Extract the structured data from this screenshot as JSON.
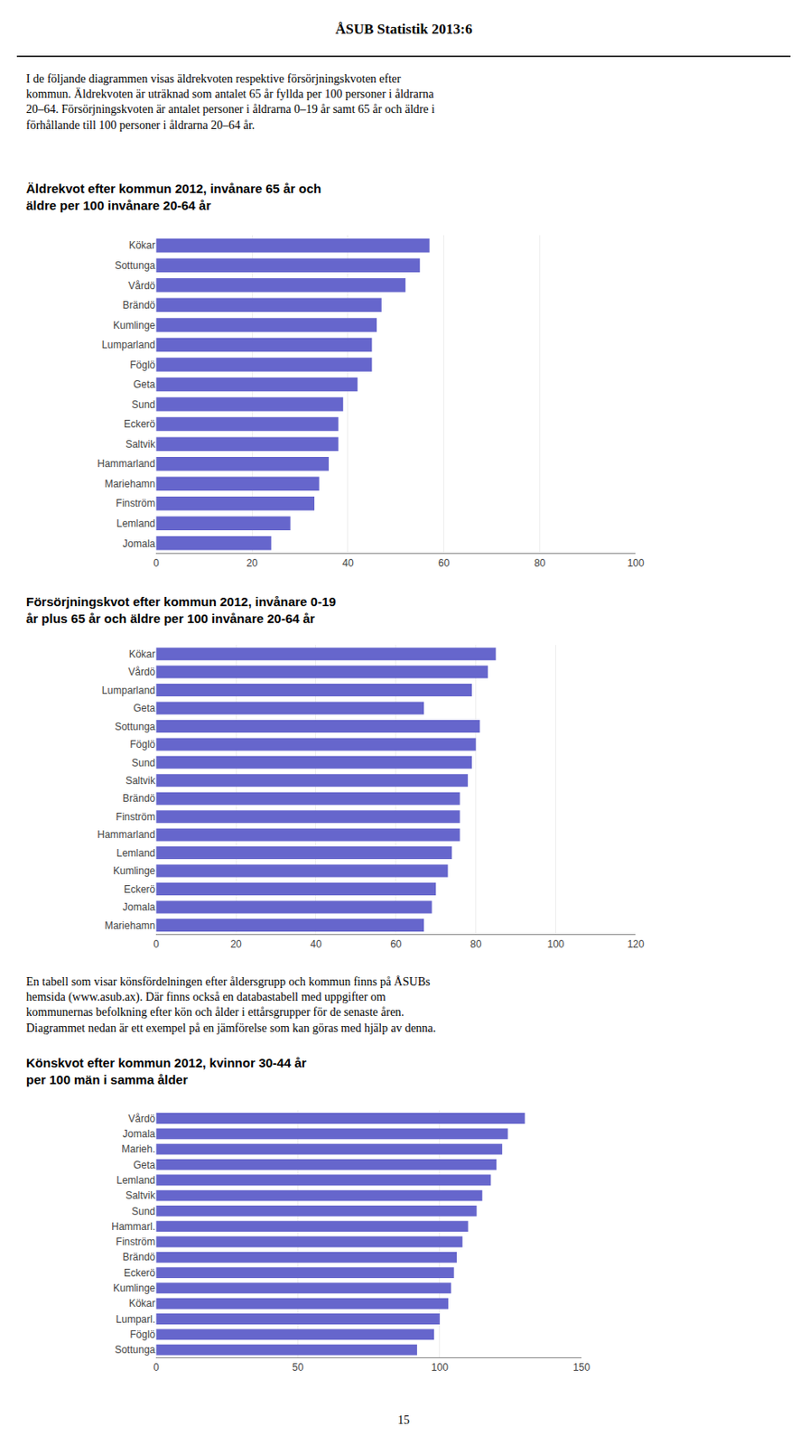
{
  "chart_data": [
    {
      "type": "bar",
      "orientation": "horizontal",
      "title": "Äldrekvot efter kommun 2012, invånare 65 år och\näldre per 100 invånare 20-64 år",
      "annotations": [
        "ÅSUB Statistik 2013:6",
        "I de följande diagrammen visas äldrekvoten respektive försörjningskvoten efter\nkommun. Äldrekvoten är uträknad som antalet 65 år fyllda per 100 personer i åldrarna\n20–64. Försörjningskvoten är antalet personer i åldrarna 0–19 år samt 65 år och äldre i\nförhållande till 100 personer i åldrarna 20–64 år."
      ],
      "categories": [
        "Kökar",
        "Sottunga",
        "Vårdö",
        "Brändö",
        "Kumlinge",
        "Lumparland",
        "Föglö",
        "Geta",
        "Sund",
        "Eckerö",
        "Saltvik",
        "Hammarland",
        "Mariehamn",
        "Finström",
        "Lemland",
        "Jomala"
      ],
      "values": [
        57,
        55,
        52,
        47,
        46,
        45,
        45,
        42,
        39,
        38,
        38,
        36,
        34,
        33,
        28,
        24
      ],
      "color": "#6666cc",
      "xlim": [
        0,
        100
      ],
      "xticks": [
        0,
        20,
        40,
        60,
        80,
        100
      ],
      "grid": true
    },
    {
      "type": "bar",
      "orientation": "horizontal",
      "title": "Försörjningskvot efter kommun 2012, invånare 0-19\når plus 65 år och äldre per 100 invånare 20-64 år",
      "categories": [
        "Kökar",
        "Vårdö",
        "Lumparland",
        "Geta",
        "Sottunga",
        "Föglö",
        "Sund",
        "Saltvik",
        "Brändö",
        "Finström",
        "Hammarland",
        "Lemland",
        "Kumlinge",
        "Eckerö",
        "Jomala",
        "Mariehamn"
      ],
      "values": [
        85,
        83,
        79,
        67,
        81,
        80,
        79,
        78,
        76,
        76,
        76,
        74,
        73,
        70,
        69,
        67
      ],
      "color": "#6666cc",
      "xlim": [
        0,
        120
      ],
      "xticks": [
        0,
        20,
        40,
        60,
        80,
        100,
        120
      ],
      "grid": true
    },
    {
      "type": "bar",
      "orientation": "horizontal",
      "title": "Könskvot efter kommun 2012, kvinnor 30-44 år\nper 100 män i samma ålder",
      "annotations": [
        "En tabell som visar könsfördelningen efter åldersgrupp och kommun finns på ÅSUBs\nhemsida (www.asub.ax). Där finns också en databastabell med uppgifter om\nkommunernas befolkning efter kön och ålder i ettårsgrupper för de senaste åren.\nDiagrammet nedan är ett exempel på en jämförelse som kan göras med hjälp av denna.",
        "15"
      ],
      "categories": [
        "Vårdö",
        "Jomala",
        "Marieh.",
        "Geta",
        "Lemland",
        "Saltvik",
        "Sund",
        "Hammarl.",
        "Finström",
        "Brändö",
        "Eckerö",
        "Kumlinge",
        "Kökar",
        "Lumparl.",
        "Föglö",
        "Sottunga"
      ],
      "values": [
        130,
        124,
        122,
        120,
        118,
        115,
        113,
        110,
        108,
        106,
        105,
        104,
        103,
        100,
        98,
        92
      ],
      "color": "#6666cc",
      "xlim": [
        0,
        150
      ],
      "xticks": [
        0,
        50,
        100,
        150
      ],
      "grid": true
    }
  ]
}
